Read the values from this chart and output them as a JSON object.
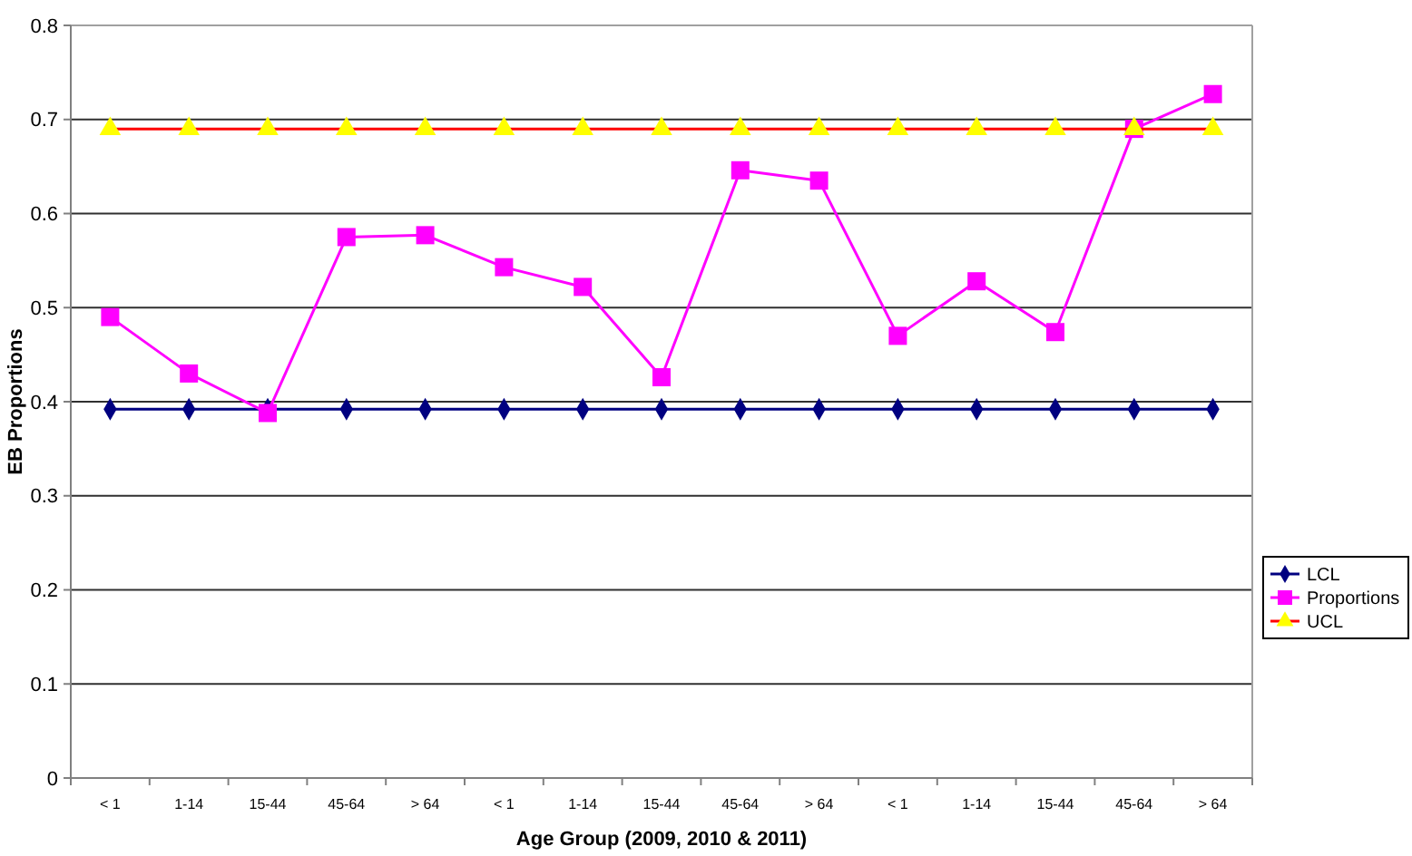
{
  "chart_data": {
    "type": "line",
    "xlabel": "Age Group (2009, 2010 & 2011)",
    "ylabel": "EB Proportions",
    "categories": [
      "< 1",
      "1-14",
      "15-44",
      "45-64",
      "> 64",
      "< 1",
      "1-14",
      "15-44",
      "45-64",
      "> 64",
      "< 1",
      "1-14",
      "15-44",
      "45-64",
      "> 64"
    ],
    "ylim": [
      0,
      0.8
    ],
    "yticks": [
      0,
      0.1,
      0.2,
      0.3,
      0.4,
      0.5,
      0.6,
      0.7,
      0.8
    ],
    "grid": "y",
    "legend": "right",
    "series": [
      {
        "name": "LCL",
        "color": "#000080",
        "marker": "diamond",
        "values": [
          0.392,
          0.392,
          0.392,
          0.392,
          0.392,
          0.392,
          0.392,
          0.392,
          0.392,
          0.392,
          0.392,
          0.392,
          0.392,
          0.392,
          0.392
        ]
      },
      {
        "name": "Proportions",
        "color": "#ff00ff",
        "marker": "square",
        "values": [
          0.49,
          0.43,
          0.388,
          0.575,
          0.577,
          0.543,
          0.522,
          0.426,
          0.646,
          0.635,
          0.47,
          0.528,
          0.474,
          0.69,
          0.727
        ]
      },
      {
        "name": "UCL",
        "color": "#ff0000",
        "colors": [
          "#ffff00",
          "#ffff00",
          "#ffff00",
          "#ffff00",
          "#ffff00",
          "#ffff00",
          "#ffff00",
          "#ffff00",
          "#ffff00",
          "#ffff00",
          "#ffff00",
          "#ffff00",
          "#ffff00",
          "#ffff00",
          "#ffff00"
        ],
        "marker": "triangle",
        "values": [
          0.69,
          0.69,
          0.69,
          0.69,
          0.69,
          0.69,
          0.69,
          0.69,
          0.69,
          0.69,
          0.69,
          0.69,
          0.69,
          0.69,
          0.69
        ]
      }
    ]
  }
}
